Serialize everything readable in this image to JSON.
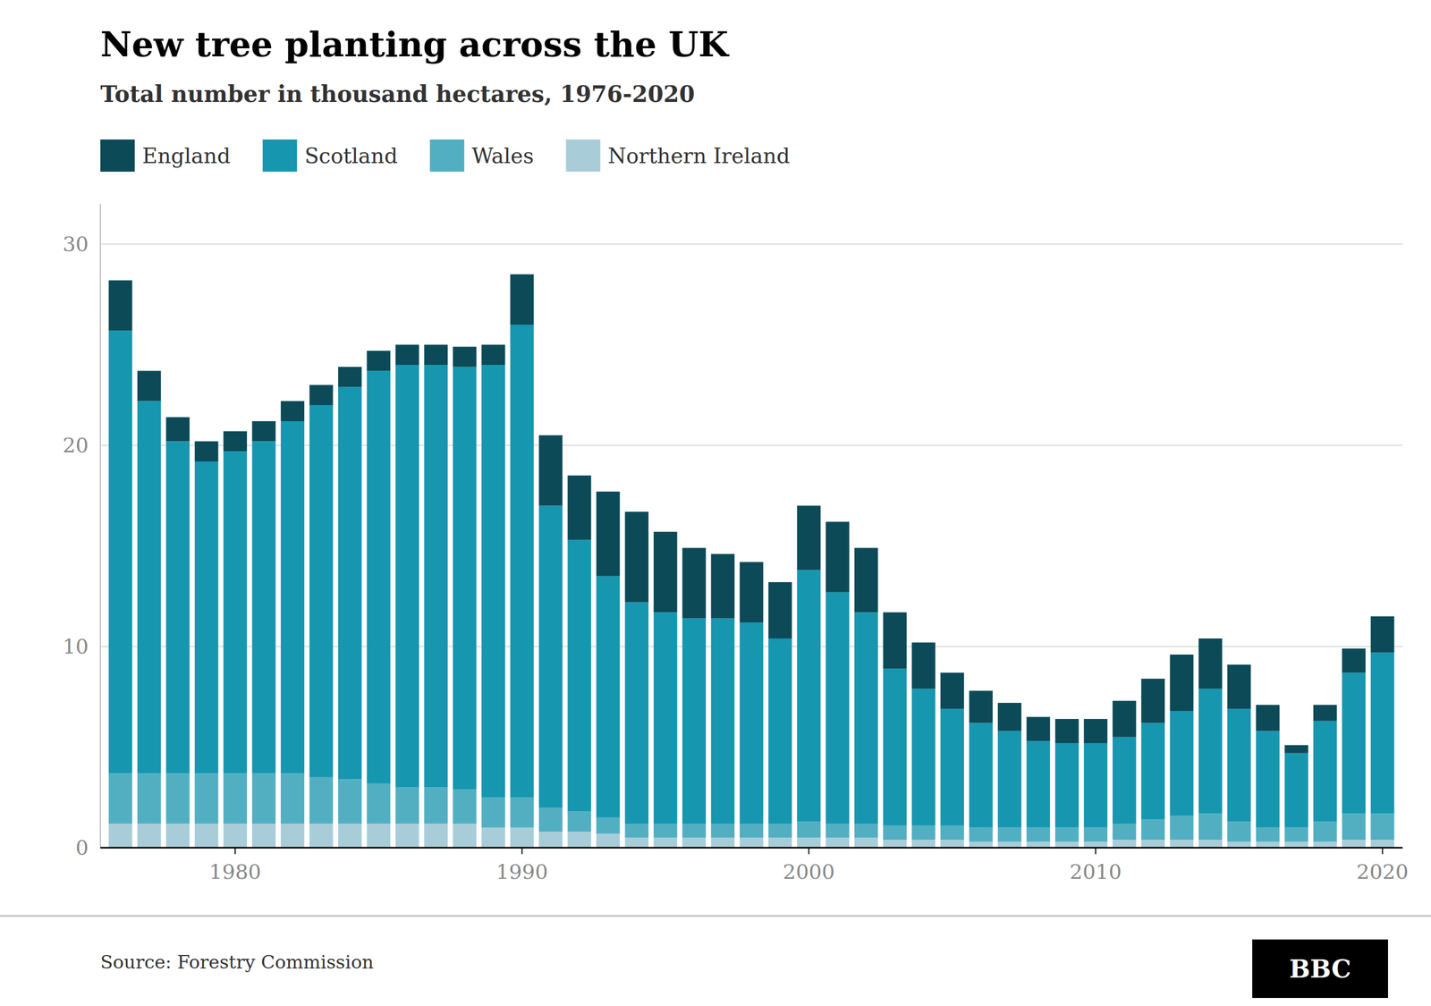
{
  "chart_data": {
    "type": "bar",
    "stacked": true,
    "title": "New tree planting across the UK",
    "subtitle": "Total number in thousand hectares, 1976-2020",
    "source": "Source: Forestry Commission",
    "logo": "BBC",
    "categories": [
      null,
      null,
      null,
      null,
      "1980",
      null,
      null,
      null,
      null,
      null,
      null,
      null,
      null,
      null,
      "1990",
      null,
      null,
      null,
      null,
      null,
      null,
      null,
      null,
      null,
      "2000",
      null,
      null,
      null,
      null,
      null,
      null,
      null,
      null,
      null,
      "2010",
      null,
      null,
      null,
      null,
      null,
      null,
      null,
      null,
      null,
      "2020"
    ],
    "series": [
      {
        "name": "Northern Ireland",
        "color": "#a8cdd9",
        "values": [
          1.2,
          1.2,
          1.2,
          1.2,
          1.2,
          1.2,
          1.2,
          1.2,
          1.2,
          1.2,
          1.2,
          1.2,
          1.2,
          1.0,
          1.0,
          0.8,
          0.8,
          0.7,
          0.5,
          0.5,
          0.5,
          0.5,
          0.5,
          0.5,
          0.5,
          0.5,
          0.5,
          0.4,
          0.4,
          0.4,
          0.3,
          0.3,
          0.3,
          0.3,
          0.3,
          0.4,
          0.4,
          0.4,
          0.4,
          0.3,
          0.3,
          0.3,
          0.3,
          0.4,
          0.4
        ]
      },
      {
        "name": "Wales",
        "color": "#52afc2",
        "values": [
          2.5,
          2.5,
          2.5,
          2.5,
          2.5,
          2.5,
          2.5,
          2.3,
          2.2,
          2.0,
          1.8,
          1.8,
          1.7,
          1.5,
          1.5,
          1.2,
          1.0,
          0.8,
          0.7,
          0.7,
          0.7,
          0.7,
          0.7,
          0.7,
          0.8,
          0.7,
          0.7,
          0.7,
          0.7,
          0.7,
          0.7,
          0.7,
          0.7,
          0.7,
          0.7,
          0.8,
          1.0,
          1.2,
          1.3,
          1.0,
          0.7,
          0.7,
          1.0,
          1.3,
          1.3
        ]
      },
      {
        "name": "Scotland",
        "color": "#1796b0",
        "values": [
          22.0,
          18.5,
          16.5,
          15.5,
          16.0,
          16.5,
          17.5,
          18.5,
          19.5,
          20.5,
          21.0,
          21.0,
          21.0,
          21.5,
          23.5,
          15.0,
          13.5,
          12.0,
          11.0,
          10.5,
          10.2,
          10.2,
          10.0,
          9.2,
          12.5,
          11.5,
          10.5,
          7.8,
          6.8,
          5.8,
          5.2,
          4.8,
          4.3,
          4.2,
          4.2,
          4.3,
          4.8,
          5.2,
          6.2,
          5.6,
          4.8,
          3.7,
          5.0,
          7.0,
          8.0
        ]
      },
      {
        "name": "England",
        "color": "#0c4a58",
        "values": [
          2.5,
          1.5,
          1.2,
          1.0,
          1.0,
          1.0,
          1.0,
          1.0,
          1.0,
          1.0,
          1.0,
          1.0,
          1.0,
          1.0,
          2.5,
          3.5,
          3.2,
          4.2,
          4.5,
          4.0,
          3.5,
          3.2,
          3.0,
          2.8,
          3.2,
          3.5,
          3.2,
          2.8,
          2.3,
          1.8,
          1.6,
          1.4,
          1.2,
          1.2,
          1.2,
          1.8,
          2.2,
          2.8,
          2.5,
          2.2,
          1.3,
          0.4,
          0.8,
          1.2,
          1.8
        ]
      }
    ],
    "ylim": [
      0,
      32
    ],
    "yticks": [
      0,
      10,
      20,
      30
    ],
    "grid": true,
    "legend": "top"
  }
}
